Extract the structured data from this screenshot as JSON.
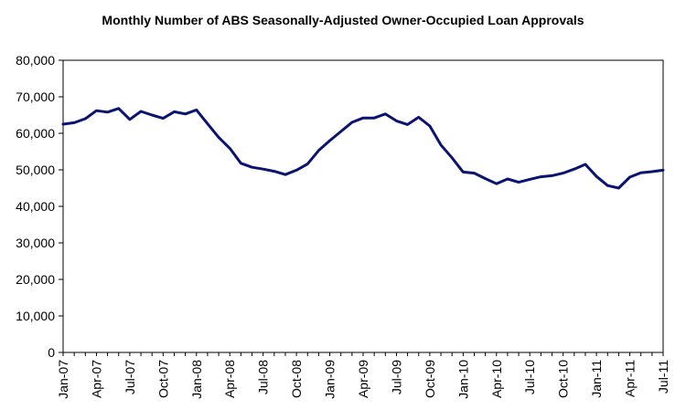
{
  "chart_data": {
    "type": "line",
    "title": "Monthly Number of ABS Seasonally-Adjusted Owner-Occupied Loan Approvals",
    "xlabel": "",
    "ylabel": "",
    "ylim": [
      0,
      80000
    ],
    "yticks": [
      "0",
      "10,000",
      "20,000",
      "30,000",
      "40,000",
      "50,000",
      "60,000",
      "70,000",
      "80,000"
    ],
    "grid": false,
    "legend": "none",
    "line_color": "#0a1470",
    "x": [
      "Jan-07",
      "Feb-07",
      "Mar-07",
      "Apr-07",
      "May-07",
      "Jun-07",
      "Jul-07",
      "Aug-07",
      "Sep-07",
      "Oct-07",
      "Nov-07",
      "Dec-07",
      "Jan-08",
      "Feb-08",
      "Mar-08",
      "Apr-08",
      "May-08",
      "Jun-08",
      "Jul-08",
      "Aug-08",
      "Sep-08",
      "Oct-08",
      "Nov-08",
      "Dec-08",
      "Jan-09",
      "Feb-09",
      "Mar-09",
      "Apr-09",
      "May-09",
      "Jun-09",
      "Jul-09",
      "Aug-09",
      "Sep-09",
      "Oct-09",
      "Nov-09",
      "Dec-09",
      "Jan-10",
      "Feb-10",
      "Mar-10",
      "Apr-10",
      "May-10",
      "Jun-10",
      "Jul-10",
      "Aug-10",
      "Sep-10",
      "Oct-10",
      "Nov-10",
      "Dec-10",
      "Jan-11",
      "Feb-11",
      "Mar-11",
      "Apr-11",
      "May-11",
      "Jun-11",
      "Jul-11"
    ],
    "xtick_labels": [
      "Jan-07",
      "Apr-07",
      "Jul-07",
      "Oct-07",
      "Jan-08",
      "Apr-08",
      "Jul-08",
      "Oct-08",
      "Jan-09",
      "Apr-09",
      "Jul-09",
      "Oct-09",
      "Jan-10",
      "Apr-10",
      "Jul-10",
      "Oct-10",
      "Jan-11",
      "Apr-11",
      "Jul-11"
    ],
    "series": [
      {
        "values": [
          62500,
          62900,
          64000,
          66200,
          65800,
          66800,
          63800,
          66000,
          65000,
          64100,
          65900,
          65300,
          66400,
          62600,
          58900,
          55900,
          51800,
          50700,
          50200,
          49600,
          48700,
          49900,
          51600,
          55300,
          58000,
          60500,
          63000,
          64200,
          64200,
          65300,
          63400,
          62400,
          64400,
          62000,
          56800,
          53300,
          49400,
          49100,
          47600,
          46200,
          47500,
          46600,
          47400,
          48100,
          48400,
          49100,
          50200,
          51500,
          48200,
          45700,
          45000,
          48000,
          49200,
          49500,
          49900
        ]
      }
    ]
  }
}
